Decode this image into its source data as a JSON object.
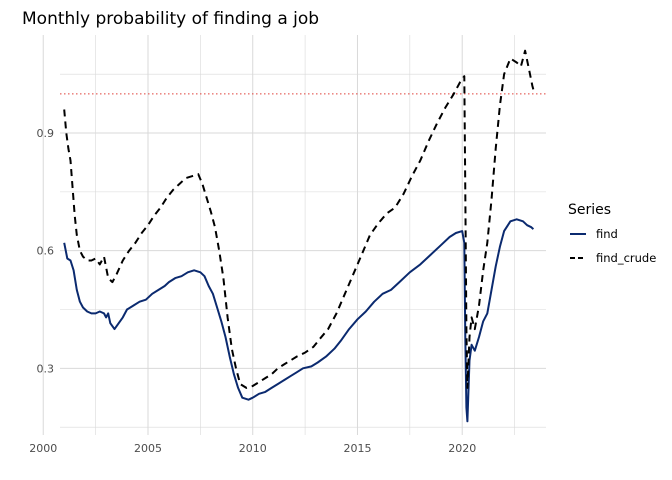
{
  "chart_data": {
    "type": "line",
    "title": "Monthly probability of finding a job",
    "xlabel": "",
    "ylabel": "",
    "xlim": [
      2000.8,
      2024.0
    ],
    "ylim": [
      0.13,
      1.15
    ],
    "x_ticks": [
      2000,
      2005,
      2010,
      2015,
      2020
    ],
    "x_tick_labels": [
      "2000",
      "2005",
      "2010",
      "2015",
      "2020"
    ],
    "y_ticks": [
      0.3,
      0.6,
      0.9
    ],
    "y_tick_labels": [
      "0.3",
      "0.6",
      "0.9"
    ],
    "grid": true,
    "reference_line": {
      "y": 1.0,
      "style": "dotted",
      "color": "#e0403a"
    },
    "legend": {
      "title": "Series",
      "position": "right"
    },
    "series": [
      {
        "name": "find",
        "color": "#0b2a6f",
        "dash": "solid",
        "points": [
          [
            2001.0,
            0.62
          ],
          [
            2001.15,
            0.58
          ],
          [
            2001.3,
            0.575
          ],
          [
            2001.45,
            0.55
          ],
          [
            2001.6,
            0.5
          ],
          [
            2001.75,
            0.47
          ],
          [
            2001.9,
            0.455
          ],
          [
            2002.1,
            0.445
          ],
          [
            2002.3,
            0.44
          ],
          [
            2002.5,
            0.44
          ],
          [
            2002.7,
            0.445
          ],
          [
            2002.9,
            0.44
          ],
          [
            2003.0,
            0.43
          ],
          [
            2003.1,
            0.44
          ],
          [
            2003.2,
            0.415
          ],
          [
            2003.4,
            0.4
          ],
          [
            2003.6,
            0.415
          ],
          [
            2003.8,
            0.43
          ],
          [
            2004.0,
            0.45
          ],
          [
            2004.3,
            0.46
          ],
          [
            2004.6,
            0.47
          ],
          [
            2004.9,
            0.475
          ],
          [
            2005.2,
            0.49
          ],
          [
            2005.5,
            0.5
          ],
          [
            2005.8,
            0.51
          ],
          [
            2006.0,
            0.52
          ],
          [
            2006.3,
            0.53
          ],
          [
            2006.6,
            0.535
          ],
          [
            2006.9,
            0.545
          ],
          [
            2007.2,
            0.55
          ],
          [
            2007.5,
            0.545
          ],
          [
            2007.7,
            0.535
          ],
          [
            2007.9,
            0.51
          ],
          [
            2008.1,
            0.49
          ],
          [
            2008.3,
            0.455
          ],
          [
            2008.5,
            0.42
          ],
          [
            2008.7,
            0.38
          ],
          [
            2008.9,
            0.33
          ],
          [
            2009.1,
            0.285
          ],
          [
            2009.3,
            0.25
          ],
          [
            2009.5,
            0.225
          ],
          [
            2009.8,
            0.22
          ],
          [
            2010.0,
            0.225
          ],
          [
            2010.3,
            0.235
          ],
          [
            2010.6,
            0.24
          ],
          [
            2010.9,
            0.25
          ],
          [
            2011.2,
            0.26
          ],
          [
            2011.5,
            0.27
          ],
          [
            2011.8,
            0.28
          ],
          [
            2012.1,
            0.29
          ],
          [
            2012.4,
            0.3
          ],
          [
            2012.8,
            0.305
          ],
          [
            2013.1,
            0.315
          ],
          [
            2013.5,
            0.33
          ],
          [
            2013.9,
            0.35
          ],
          [
            2014.2,
            0.37
          ],
          [
            2014.6,
            0.4
          ],
          [
            2015.0,
            0.425
          ],
          [
            2015.4,
            0.445
          ],
          [
            2015.8,
            0.47
          ],
          [
            2016.2,
            0.49
          ],
          [
            2016.6,
            0.5
          ],
          [
            2017.0,
            0.52
          ],
          [
            2017.5,
            0.545
          ],
          [
            2018.0,
            0.565
          ],
          [
            2018.5,
            0.59
          ],
          [
            2019.0,
            0.615
          ],
          [
            2019.4,
            0.635
          ],
          [
            2019.7,
            0.645
          ],
          [
            2020.0,
            0.65
          ],
          [
            2020.1,
            0.62
          ],
          [
            2020.15,
            0.38
          ],
          [
            2020.2,
            0.2
          ],
          [
            2020.25,
            0.165
          ],
          [
            2020.35,
            0.32
          ],
          [
            2020.45,
            0.36
          ],
          [
            2020.6,
            0.345
          ],
          [
            2020.8,
            0.38
          ],
          [
            2021.0,
            0.42
          ],
          [
            2021.2,
            0.44
          ],
          [
            2021.4,
            0.5
          ],
          [
            2021.6,
            0.56
          ],
          [
            2021.8,
            0.61
          ],
          [
            2022.0,
            0.65
          ],
          [
            2022.3,
            0.675
          ],
          [
            2022.6,
            0.68
          ],
          [
            2022.9,
            0.675
          ],
          [
            2023.1,
            0.665
          ],
          [
            2023.3,
            0.66
          ],
          [
            2023.4,
            0.655
          ]
        ]
      },
      {
        "name": "find_crude",
        "color": "#000000",
        "dash": "dashed",
        "points": [
          [
            2001.0,
            0.96
          ],
          [
            2001.1,
            0.9
          ],
          [
            2001.2,
            0.86
          ],
          [
            2001.3,
            0.83
          ],
          [
            2001.4,
            0.76
          ],
          [
            2001.5,
            0.69
          ],
          [
            2001.6,
            0.64
          ],
          [
            2001.75,
            0.6
          ],
          [
            2001.9,
            0.585
          ],
          [
            2002.1,
            0.575
          ],
          [
            2002.3,
            0.575
          ],
          [
            2002.5,
            0.58
          ],
          [
            2002.7,
            0.565
          ],
          [
            2002.9,
            0.585
          ],
          [
            2003.1,
            0.53
          ],
          [
            2003.3,
            0.52
          ],
          [
            2003.5,
            0.54
          ],
          [
            2003.8,
            0.575
          ],
          [
            2004.1,
            0.6
          ],
          [
            2004.4,
            0.62
          ],
          [
            2004.7,
            0.645
          ],
          [
            2005.0,
            0.665
          ],
          [
            2005.3,
            0.69
          ],
          [
            2005.6,
            0.71
          ],
          [
            2005.9,
            0.735
          ],
          [
            2006.2,
            0.755
          ],
          [
            2006.5,
            0.77
          ],
          [
            2006.8,
            0.785
          ],
          [
            2007.1,
            0.79
          ],
          [
            2007.4,
            0.795
          ],
          [
            2007.6,
            0.77
          ],
          [
            2007.8,
            0.735
          ],
          [
            2008.0,
            0.7
          ],
          [
            2008.2,
            0.66
          ],
          [
            2008.4,
            0.6
          ],
          [
            2008.6,
            0.53
          ],
          [
            2008.8,
            0.43
          ],
          [
            2009.0,
            0.35
          ],
          [
            2009.2,
            0.3
          ],
          [
            2009.4,
            0.26
          ],
          [
            2009.7,
            0.25
          ],
          [
            2010.0,
            0.255
          ],
          [
            2010.3,
            0.265
          ],
          [
            2010.6,
            0.275
          ],
          [
            2010.9,
            0.285
          ],
          [
            2011.2,
            0.3
          ],
          [
            2011.5,
            0.31
          ],
          [
            2011.8,
            0.32
          ],
          [
            2012.1,
            0.33
          ],
          [
            2012.5,
            0.34
          ],
          [
            2012.9,
            0.355
          ],
          [
            2013.2,
            0.375
          ],
          [
            2013.6,
            0.4
          ],
          [
            2014.0,
            0.44
          ],
          [
            2014.4,
            0.49
          ],
          [
            2014.8,
            0.54
          ],
          [
            2015.2,
            0.59
          ],
          [
            2015.6,
            0.64
          ],
          [
            2016.0,
            0.67
          ],
          [
            2016.4,
            0.695
          ],
          [
            2016.8,
            0.71
          ],
          [
            2017.2,
            0.745
          ],
          [
            2017.6,
            0.79
          ],
          [
            2018.0,
            0.83
          ],
          [
            2018.4,
            0.88
          ],
          [
            2018.8,
            0.925
          ],
          [
            2019.2,
            0.965
          ],
          [
            2019.6,
            1.0
          ],
          [
            2019.9,
            1.03
          ],
          [
            2020.1,
            1.045
          ],
          [
            2020.15,
            0.75
          ],
          [
            2020.2,
            0.4
          ],
          [
            2020.25,
            0.25
          ],
          [
            2020.35,
            0.38
          ],
          [
            2020.45,
            0.43
          ],
          [
            2020.6,
            0.4
          ],
          [
            2020.8,
            0.46
          ],
          [
            2021.0,
            0.55
          ],
          [
            2021.2,
            0.62
          ],
          [
            2021.4,
            0.73
          ],
          [
            2021.6,
            0.86
          ],
          [
            2021.8,
            0.97
          ],
          [
            2022.0,
            1.05
          ],
          [
            2022.3,
            1.09
          ],
          [
            2022.6,
            1.08
          ],
          [
            2022.8,
            1.07
          ],
          [
            2023.0,
            1.11
          ],
          [
            2023.2,
            1.06
          ],
          [
            2023.35,
            1.02
          ],
          [
            2023.45,
            1.0
          ]
        ]
      }
    ]
  },
  "colors": {
    "background": "#ffffff",
    "grid": "#d9d9d9",
    "tick_text": "#4d4d4d",
    "reference_line": "#e0403a"
  }
}
